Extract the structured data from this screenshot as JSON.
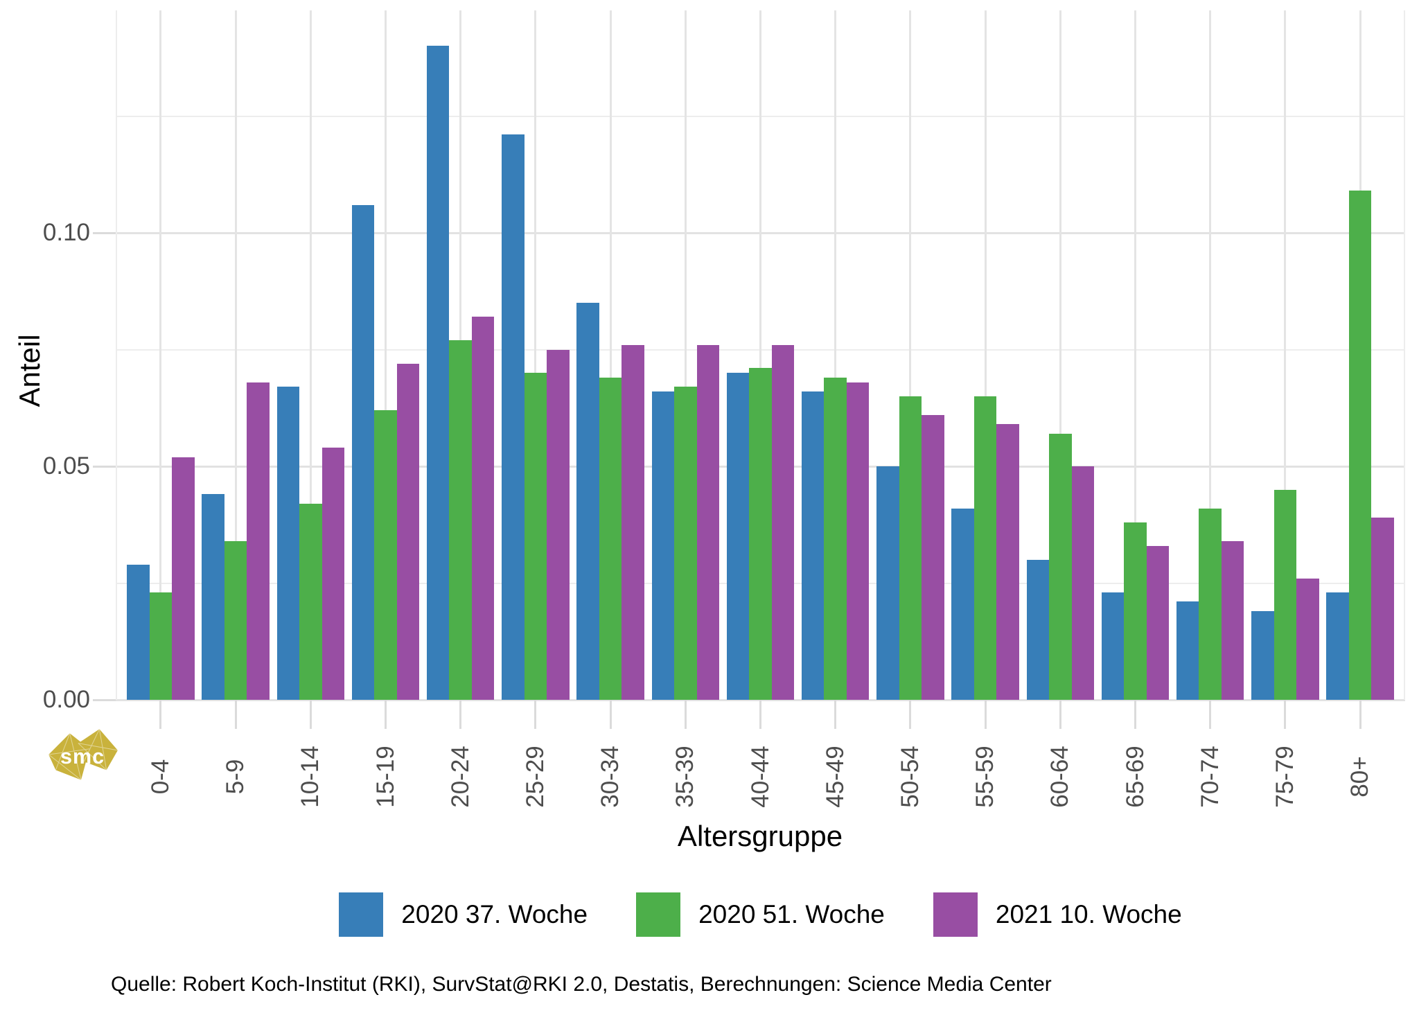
{
  "chart_data": {
    "type": "bar",
    "title": "",
    "ylabel": "Anteil",
    "xlabel": "Altersgruppe",
    "categories": [
      "0-4",
      "5-9",
      "10-14",
      "15-19",
      "20-24",
      "25-29",
      "30-34",
      "35-39",
      "40-44",
      "45-49",
      "50-54",
      "55-59",
      "60-64",
      "65-69",
      "70-74",
      "75-79",
      "80+"
    ],
    "series": [
      {
        "name": "2020 37. Woche",
        "color": "#377EB8",
        "values": [
          0.029,
          0.044,
          0.067,
          0.106,
          0.14,
          0.121,
          0.085,
          0.066,
          0.07,
          0.066,
          0.05,
          0.041,
          0.03,
          0.023,
          0.021,
          0.019,
          0.023
        ]
      },
      {
        "name": "2020 51. Woche",
        "color": "#4DAF4A",
        "values": [
          0.023,
          0.034,
          0.042,
          0.062,
          0.077,
          0.07,
          0.069,
          0.067,
          0.071,
          0.069,
          0.065,
          0.065,
          0.057,
          0.038,
          0.041,
          0.045,
          0.109
        ]
      },
      {
        "name": "2021 10. Woche",
        "color": "#984EA3",
        "values": [
          0.052,
          0.068,
          0.054,
          0.072,
          0.082,
          0.075,
          0.076,
          0.076,
          0.076,
          0.068,
          0.061,
          0.059,
          0.05,
          0.033,
          0.034,
          0.026,
          0.039
        ]
      }
    ],
    "ylim": [
      0,
      0.1476
    ],
    "yticks": [
      {
        "value": 0.0,
        "label": "0.00"
      },
      {
        "value": 0.05,
        "label": "0.05"
      },
      {
        "value": 0.1,
        "label": "0.10"
      }
    ],
    "minor_gridlines": [
      0.025,
      0.075,
      0.125
    ],
    "grid": true,
    "legend_position": "bottom"
  },
  "caption": {
    "text": "Quelle: Robert Koch-Institut (RKI), SurvStat@RKI 2.0, Destatis, Berechnungen: Science Media Center"
  },
  "watermark": {
    "text": "smc",
    "color": "#C9B23C"
  },
  "page": {
    "background": "#FFFFFF"
  }
}
